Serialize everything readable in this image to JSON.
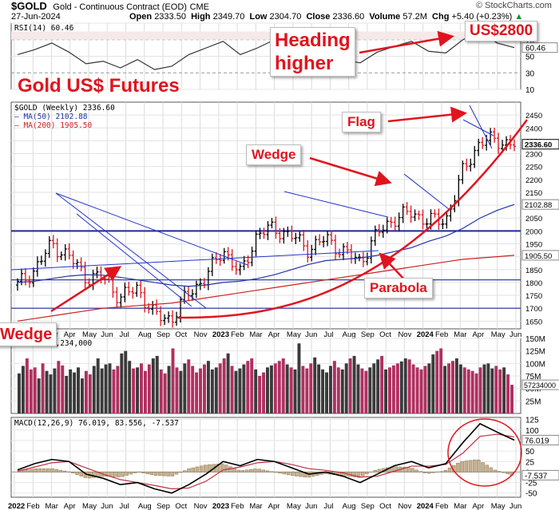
{
  "header": {
    "symbol": "$GOLD",
    "name": "Gold - Continuous Contract (EOD)",
    "exchange": "CME",
    "date": "27-Jun-2024",
    "open_label": "Open",
    "open": "2333.50",
    "high_label": "High",
    "high": "2349.70",
    "low_label": "Low",
    "low": "2304.70",
    "close_label": "Close",
    "close": "2336.60",
    "volume_label": "Volume",
    "volume": "57.2M",
    "chg_label": "Chg",
    "chg": "+5.40 (+0.23%)",
    "credit": "© StockCharts.com",
    "dn_arrow": "▲"
  },
  "annotations": {
    "title": "Gold US$ Futures",
    "heading_higher": "Heading\nhigher",
    "target": "US$2800",
    "flag": "Flag",
    "wedge_top": "Wedge",
    "wedge_left": "Wedge",
    "parabola": "Parabola"
  },
  "colors": {
    "up_bar": "#000000",
    "down_bar": "#e0141e",
    "ma50": "#2233aa",
    "ma200": "#cc2222",
    "annotation": "#e0141e",
    "trendline": "#2233cc",
    "volume_up": "#3a3a3a",
    "volume_down": "#b03060",
    "macd_line": "#000000",
    "signal_line": "#c03040",
    "histogram": "#c8b08a"
  },
  "chart_data": [
    {
      "type": "line",
      "title": "RSI(14) 60.46",
      "panel": "rsi",
      "ylim": [
        10,
        90
      ],
      "y_ticks": [
        "90",
        "70",
        "50",
        "30",
        "10"
      ],
      "last_label": "60.46",
      "x": [
        "2022-01",
        "2022-02",
        "2022-03",
        "2022-04",
        "2022-05",
        "2022-06",
        "2022-07",
        "2022-08",
        "2022-09",
        "2022-10",
        "2022-11",
        "2022-12",
        "2023-01",
        "2023-02",
        "2023-03",
        "2023-04",
        "2023-05",
        "2023-06",
        "2023-07",
        "2023-08",
        "2023-09",
        "2023-10",
        "2023-11",
        "2023-12",
        "2024-01",
        "2024-02",
        "2024-03",
        "2024-04",
        "2024-05",
        "2024-06"
      ],
      "values": [
        52,
        58,
        66,
        55,
        41,
        44,
        36,
        46,
        34,
        38,
        52,
        60,
        68,
        52,
        60,
        70,
        58,
        50,
        55,
        46,
        42,
        55,
        62,
        68,
        56,
        54,
        70,
        80,
        66,
        60.46
      ]
    },
    {
      "type": "line",
      "title": "$GOLD (Weekly) 2336.60",
      "panel": "price",
      "ylim": [
        1620,
        2500
      ],
      "y_ticks": [
        "2450",
        "2400",
        "2350",
        "2300",
        "2250",
        "2200",
        "2150",
        "2100",
        "2050",
        "2000",
        "1950",
        "1900",
        "1850",
        "1800",
        "1750",
        "1700",
        "1650"
      ],
      "x_ticks": [
        "2022",
        "Feb",
        "Mar",
        "Apr",
        "May",
        "Jun",
        "Jul",
        "Aug",
        "Sep",
        "Oct",
        "Nov",
        "2023",
        "Feb",
        "Mar",
        "Apr",
        "May",
        "Jun",
        "Jul",
        "Aug",
        "Sep",
        "Oct",
        "Nov",
        "2024",
        "Feb",
        "Mar",
        "Apr",
        "May",
        "Jun"
      ],
      "series": [
        {
          "name": "$GOLD (Weekly) 2336.60",
          "x": [
            "2022-01",
            "2022-02",
            "2022-03",
            "2022-04",
            "2022-05",
            "2022-06",
            "2022-07",
            "2022-08",
            "2022-09",
            "2022-10",
            "2022-11",
            "2022-12",
            "2023-01",
            "2023-02",
            "2023-03",
            "2023-04",
            "2023-05",
            "2023-06",
            "2023-07",
            "2023-08",
            "2023-09",
            "2023-10",
            "2023-11",
            "2023-12",
            "2024-01",
            "2024-02",
            "2024-03",
            "2024-04",
            "2024-05",
            "2024-06"
          ],
          "values": [
            1790,
            1850,
            1950,
            1900,
            1820,
            1820,
            1740,
            1780,
            1670,
            1660,
            1760,
            1820,
            1930,
            1830,
            1990,
            2010,
            1980,
            1930,
            1970,
            1920,
            1880,
            1990,
            2050,
            2070,
            2040,
            2040,
            2230,
            2350,
            2350,
            2336.6
          ]
        },
        {
          "name": "MA(50) 2102.88",
          "values": [
            1800,
            1805,
            1815,
            1825,
            1830,
            1828,
            1820,
            1810,
            1800,
            1790,
            1785,
            1790,
            1800,
            1805,
            1815,
            1830,
            1850,
            1870,
            1885,
            1890,
            1895,
            1905,
            1920,
            1935,
            1960,
            1980,
            2010,
            2050,
            2080,
            2102.88
          ]
        },
        {
          "name": "MA(200) 1905.50",
          "values": [
            1650,
            1660,
            1670,
            1680,
            1690,
            1700,
            1705,
            1710,
            1715,
            1720,
            1730,
            1740,
            1750,
            1760,
            1770,
            1780,
            1790,
            1800,
            1810,
            1820,
            1830,
            1840,
            1850,
            1860,
            1870,
            1880,
            1890,
            1895,
            1900,
            1905.5
          ]
        }
      ],
      "horizontal_lines": [
        2000,
        1810,
        1700
      ],
      "last_labels": [
        "2336.60",
        "2102.88",
        "1905.50"
      ]
    },
    {
      "type": "bar",
      "title": "Volume 57,234,000",
      "panel": "volume",
      "ylim": [
        0,
        150
      ],
      "y_ticks": [
        "150M",
        "125M",
        "100M",
        "75M",
        "50M",
        "25M"
      ],
      "last_label": "57234000",
      "values": [
        80,
        95,
        110,
        88,
        92,
        70,
        100,
        85,
        78,
        90,
        105,
        96,
        75,
        88,
        82,
        92,
        70,
        85,
        78,
        95,
        110,
        90,
        98,
        100,
        88,
        95,
        120,
        125,
        105,
        90,
        92,
        100,
        85,
        98,
        110,
        115,
        88,
        80,
        95,
        130,
        92,
        85,
        100,
        108,
        95,
        82,
        90,
        98,
        105,
        88,
        92,
        100,
        110,
        120,
        95,
        85,
        90,
        98,
        105,
        110,
        88,
        75,
        82,
        92,
        96,
        100,
        105,
        110,
        98,
        92,
        88,
        140,
        95,
        90,
        100,
        112,
        98,
        88,
        82,
        95,
        105,
        92,
        88,
        100,
        110,
        115,
        98,
        90,
        85,
        92,
        100,
        108,
        115,
        88,
        92,
        96,
        100,
        104,
        110,
        108,
        98,
        92,
        88,
        95,
        100,
        118,
        125,
        130,
        95,
        100,
        105,
        110,
        98,
        92,
        88,
        85,
        80,
        92,
        98,
        100,
        90,
        95,
        88,
        92,
        78,
        57.234
      ]
    },
    {
      "type": "line",
      "title": "MACD(12,26,9) 76.019, 83.556, -7.537",
      "panel": "macd",
      "ylim": [
        -60,
        130
      ],
      "y_ticks": [
        "125",
        "100",
        "75",
        "50",
        "25",
        "0",
        "-25",
        "-50"
      ],
      "last_labels": [
        "76.019",
        "-7.537"
      ],
      "series": [
        {
          "name": "MACD(12,26,9)",
          "values": [
            5,
            20,
            30,
            25,
            -5,
            -15,
            -30,
            -25,
            -40,
            -50,
            -30,
            -5,
            25,
            15,
            30,
            25,
            10,
            -5,
            0,
            -10,
            -25,
            -5,
            15,
            25,
            10,
            20,
            70,
            115,
            95,
            76.019
          ]
        },
        {
          "name": "Signal",
          "values": [
            2,
            12,
            22,
            25,
            10,
            -5,
            -18,
            -25,
            -32,
            -40,
            -38,
            -22,
            5,
            12,
            22,
            25,
            18,
            8,
            4,
            -2,
            -12,
            -10,
            2,
            14,
            14,
            18,
            45,
            85,
            90,
            83.556
          ]
        }
      ]
    }
  ]
}
